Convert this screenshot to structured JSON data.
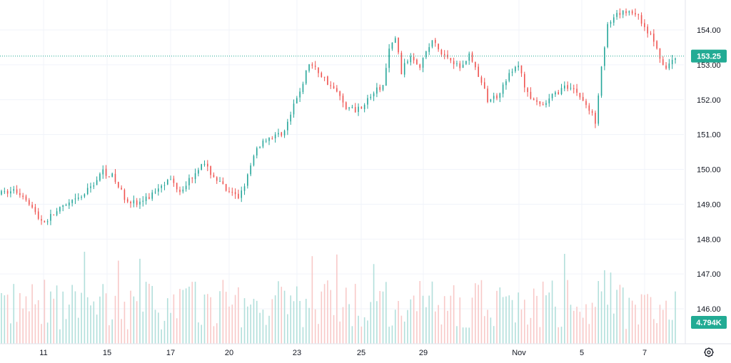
{
  "chart_data": {
    "type": "candlestick",
    "y_axis": {
      "ticks": [
        146,
        147,
        148,
        149,
        150,
        151,
        152,
        153,
        154
      ],
      "tick_labels": [
        "146.00",
        "147.00",
        "148.00",
        "149.00",
        "150.00",
        "151.00",
        "152.00",
        "153.00",
        "154.00"
      ],
      "side": "right"
    },
    "x_axis": {
      "tick_labels": [
        "11",
        "15",
        "17",
        "20",
        "23",
        "25",
        "29",
        "Nov",
        "5",
        "7"
      ]
    },
    "price_path": [
      [
        0,
        149.3
      ],
      [
        4,
        149.4
      ],
      [
        8,
        149.2
      ],
      [
        12,
        148.6
      ],
      [
        14,
        148.5
      ],
      [
        18,
        148.8
      ],
      [
        22,
        149.0
      ],
      [
        26,
        149.2
      ],
      [
        30,
        149.6
      ],
      [
        33,
        149.95
      ],
      [
        36,
        149.8
      ],
      [
        40,
        149.2
      ],
      [
        44,
        149.0
      ],
      [
        48,
        149.2
      ],
      [
        52,
        149.6
      ],
      [
        55,
        149.7
      ],
      [
        58,
        149.4
      ],
      [
        62,
        149.8
      ],
      [
        65,
        150.2
      ],
      [
        68,
        149.9
      ],
      [
        71,
        149.6
      ],
      [
        74,
        149.3
      ],
      [
        77,
        149.2
      ],
      [
        80,
        149.8
      ],
      [
        83,
        150.6
      ],
      [
        86,
        150.9
      ],
      [
        89,
        150.95
      ],
      [
        92,
        151.1
      ],
      [
        95,
        151.8
      ],
      [
        98,
        152.5
      ],
      [
        100,
        153.05
      ],
      [
        103,
        152.8
      ],
      [
        106,
        152.5
      ],
      [
        109,
        152.2
      ],
      [
        112,
        151.8
      ],
      [
        115,
        151.7
      ],
      [
        118,
        151.9
      ],
      [
        121,
        152.2
      ],
      [
        124,
        152.4
      ],
      [
        126,
        153.4
      ],
      [
        128,
        153.8
      ],
      [
        130,
        152.8
      ],
      [
        133,
        153.3
      ],
      [
        136,
        153.0
      ],
      [
        140,
        153.7
      ],
      [
        143,
        153.3
      ],
      [
        146,
        153.2
      ],
      [
        149,
        152.9
      ],
      [
        152,
        153.3
      ],
      [
        155,
        152.7
      ],
      [
        158,
        152.0
      ],
      [
        161,
        152.1
      ],
      [
        164,
        152.6
      ],
      [
        168,
        153.0
      ],
      [
        170,
        152.4
      ],
      [
        173,
        151.9
      ],
      [
        176,
        151.8
      ],
      [
        179,
        152.1
      ],
      [
        182,
        152.3
      ],
      [
        185,
        152.4
      ],
      [
        188,
        152.1
      ],
      [
        191,
        151.7
      ],
      [
        193,
        151.4
      ],
      [
        195,
        153.0
      ],
      [
        197,
        154.1
      ],
      [
        200,
        154.4
      ],
      [
        203,
        154.55
      ],
      [
        206,
        154.5
      ],
      [
        209,
        154.1
      ],
      [
        212,
        153.7
      ],
      [
        214,
        153.1
      ],
      [
        216,
        152.9
      ],
      [
        218,
        153.1
      ],
      [
        219,
        153.2
      ]
    ],
    "last_price": "153.25",
    "last_price_value": 153.25,
    "volume_label": "4.794K",
    "grid": true,
    "colors": {
      "up": "#26a69a",
      "down": "#ef5350",
      "up_volume": "#b2dfdb",
      "down_volume": "#f8c9c8",
      "grid": "#f0f3fa",
      "axis_text": "#131722",
      "badge": "#22ab94",
      "price_line": "#22ab94"
    }
  },
  "icons": {
    "settings": "gear-icon"
  }
}
